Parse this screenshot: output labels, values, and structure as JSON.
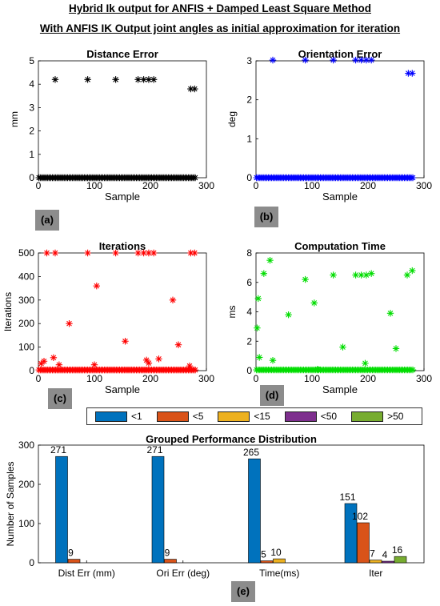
{
  "header": {
    "line1": "Hybrid Ik output for ANFIS + Damped Least Square Method",
    "line2": "With ANFIS IK Output joint angles as initial approximation for iteration"
  },
  "labels": {
    "a": "(a)",
    "b": "(b)",
    "c": "(c)",
    "d": "(d)",
    "e": "(e)"
  },
  "legend": [
    {
      "label": "<1",
      "color": "#0072BD"
    },
    {
      "label": "<5",
      "color": "#D95319"
    },
    {
      "label": "<15",
      "color": "#EDB120"
    },
    {
      "label": "<50",
      "color": "#7E2F8E"
    },
    {
      "label": ">50",
      "color": "#77AC30"
    }
  ],
  "chart_data": [
    {
      "type": "scatter",
      "title": "Distance Error",
      "xlabel": "Sample",
      "ylabel": "mm",
      "xlim": [
        0,
        300
      ],
      "ylim": [
        0,
        5
      ],
      "xticks": [
        0,
        100,
        200,
        300
      ],
      "yticks": [
        0,
        1,
        2,
        3,
        4,
        5
      ],
      "marker": "*",
      "color": "#000000",
      "baseline": {
        "y": 0,
        "x_range": [
          1,
          281
        ]
      },
      "points": [
        [
          30,
          4.2
        ],
        [
          88,
          4.2
        ],
        [
          138,
          4.2
        ],
        [
          178,
          4.2
        ],
        [
          188,
          4.2
        ],
        [
          197,
          4.2
        ],
        [
          206,
          4.2
        ],
        [
          272,
          3.8
        ],
        [
          279,
          3.8
        ]
      ]
    },
    {
      "type": "scatter",
      "title": "Orientation Error",
      "xlabel": "Sample",
      "ylabel": "deg",
      "xlim": [
        0,
        300
      ],
      "ylim": [
        0,
        3
      ],
      "xticks": [
        0,
        100,
        200,
        300
      ],
      "yticks": [
        0,
        1,
        2,
        3
      ],
      "marker": "*",
      "color": "#0000FF",
      "baseline": {
        "y": 0,
        "x_range": [
          1,
          281
        ]
      },
      "points": [
        [
          30,
          3.02
        ],
        [
          88,
          3.02
        ],
        [
          138,
          3.02
        ],
        [
          178,
          3.02
        ],
        [
          188,
          3.02
        ],
        [
          197,
          3.02
        ],
        [
          206,
          3.02
        ],
        [
          272,
          2.68
        ],
        [
          279,
          2.68
        ]
      ]
    },
    {
      "type": "scatter",
      "title": "Iterations",
      "xlabel": "Sample",
      "ylabel": "Iterations",
      "xlim": [
        0,
        300
      ],
      "ylim": [
        0,
        500
      ],
      "xticks": [
        0,
        100,
        200,
        300
      ],
      "yticks": [
        0,
        100,
        200,
        300,
        400,
        500
      ],
      "marker": "*",
      "color": "#FF0000",
      "baseline": {
        "y": 3,
        "x_range": [
          1,
          281
        ]
      },
      "points": [
        [
          15,
          500
        ],
        [
          30,
          500
        ],
        [
          88,
          500
        ],
        [
          138,
          500
        ],
        [
          178,
          500
        ],
        [
          188,
          500
        ],
        [
          197,
          500
        ],
        [
          206,
          500
        ],
        [
          272,
          500
        ],
        [
          279,
          500
        ],
        [
          5,
          30
        ],
        [
          10,
          40
        ],
        [
          27,
          55
        ],
        [
          37,
          25
        ],
        [
          55,
          200
        ],
        [
          100,
          25
        ],
        [
          104,
          360
        ],
        [
          155,
          125
        ],
        [
          193,
          45
        ],
        [
          197,
          32
        ],
        [
          215,
          50
        ],
        [
          240,
          300
        ],
        [
          250,
          110
        ],
        [
          270,
          20
        ]
      ]
    },
    {
      "type": "scatter",
      "title": "Computation Time",
      "xlabel": "Sample",
      "ylabel": "ms",
      "xlim": [
        0,
        300
      ],
      "ylim": [
        0,
        8
      ],
      "xticks": [
        0,
        100,
        200,
        300
      ],
      "yticks": [
        0,
        2,
        4,
        6,
        8
      ],
      "marker": "*",
      "color": "#00DD00",
      "baseline": {
        "y": 0.05,
        "x_range": [
          1,
          281
        ]
      },
      "points": [
        [
          2,
          2.9
        ],
        [
          4,
          4.9
        ],
        [
          6,
          0.9
        ],
        [
          14,
          6.6
        ],
        [
          25,
          7.5
        ],
        [
          30,
          0.7
        ],
        [
          58,
          3.8
        ],
        [
          88,
          6.2
        ],
        [
          104,
          4.6
        ],
        [
          110,
          0.1
        ],
        [
          138,
          6.5
        ],
        [
          155,
          1.6
        ],
        [
          178,
          6.5
        ],
        [
          188,
          6.5
        ],
        [
          197,
          6.5
        ],
        [
          206,
          6.6
        ],
        [
          195,
          0.5
        ],
        [
          240,
          3.9
        ],
        [
          250,
          1.5
        ],
        [
          270,
          6.5
        ],
        [
          279,
          6.8
        ]
      ]
    },
    {
      "type": "bar",
      "title": "Grouped Performance Distribution",
      "xlabel": "",
      "ylabel": "Number of Samples",
      "ylim": [
        0,
        300
      ],
      "yticks": [
        0,
        100,
        200,
        300
      ],
      "categories": [
        "Dist Err (mm)",
        "Ori Err (deg)",
        "Time(ms)",
        "Iter"
      ],
      "series": [
        {
          "name": "<1",
          "values": [
            271,
            271,
            265,
            151
          ],
          "labels": [
            "271",
            "271",
            "265",
            "151"
          ]
        },
        {
          "name": "<5",
          "values": [
            9,
            9,
            5,
            102
          ],
          "labels": [
            "9",
            "9",
            "5",
            "102"
          ]
        },
        {
          "name": "<15",
          "values": [
            0,
            0,
            10,
            7
          ],
          "labels": [
            "",
            "",
            "10",
            "7"
          ]
        },
        {
          "name": "<50",
          "values": [
            0,
            0,
            0,
            4
          ],
          "labels": [
            "",
            "",
            "",
            "4"
          ]
        },
        {
          "name": ">50",
          "values": [
            0,
            0,
            0,
            16
          ],
          "labels": [
            "",
            "",
            "",
            "16"
          ]
        }
      ]
    }
  ]
}
